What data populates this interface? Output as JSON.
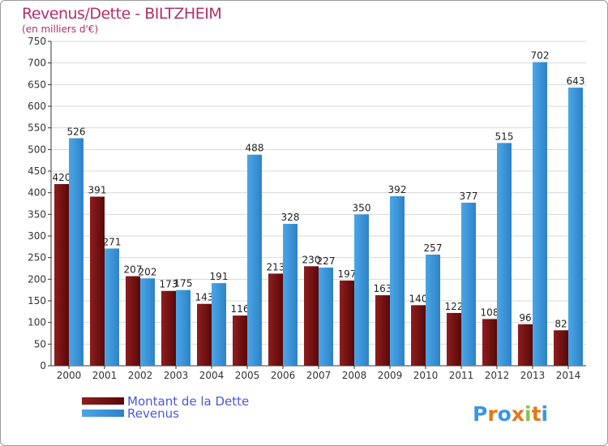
{
  "chart_data": {
    "type": "bar",
    "title": "Revenus/Dette - BILTZHEIM",
    "subtitle": "(en milliers d'€)",
    "categories": [
      "2000",
      "2001",
      "2002",
      "2003",
      "2004",
      "2005",
      "2006",
      "2007",
      "2008",
      "2009",
      "2010",
      "2011",
      "2012",
      "2013",
      "2014"
    ],
    "series": [
      {
        "name": "Montant de la Dette",
        "color": "#7a1010",
        "values": [
          420,
          391,
          207,
          173,
          143,
          116,
          213,
          230,
          197,
          163,
          140,
          122,
          108,
          96,
          82
        ]
      },
      {
        "name": "Revenus",
        "color": "#3c96dc",
        "values": [
          526,
          271,
          202,
          175,
          191,
          488,
          328,
          227,
          350,
          392,
          257,
          377,
          515,
          702,
          643
        ]
      }
    ],
    "ylim": [
      0,
      750
    ],
    "yticks": [
      0,
      50,
      100,
      150,
      200,
      250,
      300,
      350,
      400,
      450,
      500,
      550,
      600,
      650,
      700,
      750
    ],
    "grid": true,
    "legend_position": "bottom-left"
  },
  "watermark": {
    "text": "Proxiti"
  }
}
